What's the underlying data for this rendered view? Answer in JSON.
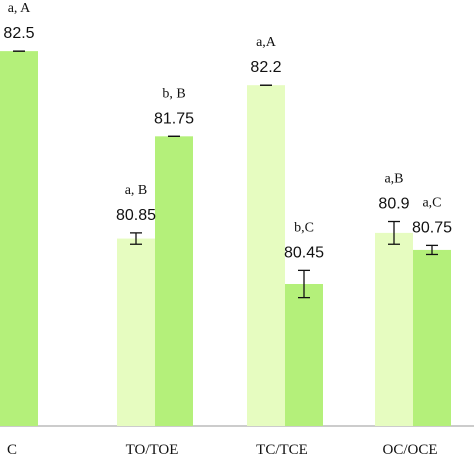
{
  "chart_data": {
    "type": "bar",
    "categories": [
      "C",
      "TO/TOE",
      "TC/TCE",
      "OC/OCE"
    ],
    "series": [
      {
        "values": [
          82.5,
          80.85,
          82.2,
          80.9
        ],
        "value_labels": [
          "82.5",
          "80.85",
          "82.2",
          "80.9"
        ],
        "letters": [
          "A",
          "a, B",
          "a,A",
          "a,B"
        ],
        "error": [
          0.0,
          0.05,
          0.0,
          0.1
        ],
        "color": "#e6fcc0"
      },
      {
        "values": [
          82.5,
          81.75,
          80.45,
          80.75
        ],
        "value_labels": [
          "82.5",
          "81.75",
          "80.45",
          "80.75"
        ],
        "letters": [
          "a, A",
          "b, B",
          "b,C",
          "a,C"
        ],
        "error": [
          0.0,
          0.0,
          0.12,
          0.04
        ],
        "color": "#b4f07a"
      }
    ],
    "ylim": [
      79.2,
      82.95
    ],
    "grid": false,
    "legend": "none"
  }
}
